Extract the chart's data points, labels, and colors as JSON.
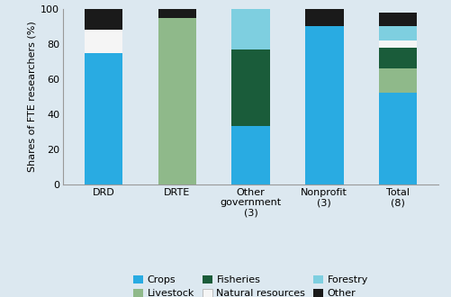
{
  "categories": [
    "DRD",
    "DRTE",
    "Other\ngovernment\n(3)",
    "Nonprofit\n(3)",
    "Total\n(8)"
  ],
  "series_order": [
    "Crops",
    "Livestock",
    "Fisheries",
    "Natural resources",
    "Forestry",
    "Other"
  ],
  "series": {
    "Crops": [
      75,
      0,
      33,
      90,
      52
    ],
    "Livestock": [
      0,
      95,
      0,
      0,
      14
    ],
    "Fisheries": [
      0,
      0,
      44,
      0,
      12
    ],
    "Natural resources": [
      13,
      0,
      0,
      0,
      4
    ],
    "Forestry": [
      0,
      0,
      23,
      0,
      8
    ],
    "Other": [
      12,
      5,
      0,
      10,
      8
    ]
  },
  "colors": {
    "Crops": "#29abe2",
    "Livestock": "#8fb98a",
    "Fisheries": "#1a5c3a",
    "Natural resources": "#f5f5f5",
    "Forestry": "#7ecfe0",
    "Other": "#1a1a1a"
  },
  "ylabel": "Shares of FTE researchers (%)",
  "ylim": [
    0,
    100
  ],
  "yticks": [
    0,
    20,
    40,
    60,
    80,
    100
  ],
  "background_color": "#dce8f0",
  "bar_width": 0.52,
  "legend_row1": [
    "Crops",
    "Livestock",
    "Fisheries"
  ],
  "legend_row2": [
    "Natural resources",
    "Forestry",
    "Other"
  ]
}
